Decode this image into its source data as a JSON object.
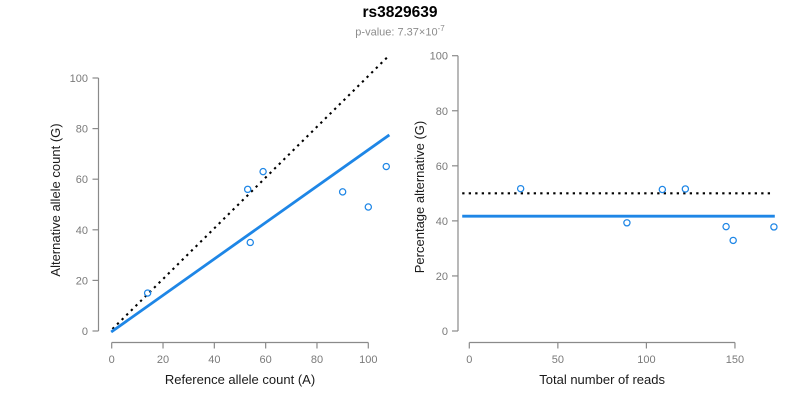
{
  "header": {
    "title": "rs3829639",
    "pvalue_label": "p-value: 7.37×10",
    "pvalue_exponent": "-7"
  },
  "colors": {
    "accent_blue": "#1E86E6",
    "identity_black": "#000000",
    "axis_gray": "#8a8a8a",
    "tick_text_gray": "#7a7a7a",
    "axis_title_color": "#1a1a1a",
    "subtitle_gray": "#8c8c8c"
  },
  "chart_data": [
    {
      "type": "scatter",
      "panel": "left",
      "xlabel": "Reference allele count (A)",
      "ylabel": "Alternative allele count (G)",
      "xticks": [
        0,
        20,
        40,
        60,
        80,
        100
      ],
      "yticks": [
        0,
        20,
        40,
        60,
        80,
        100
      ],
      "xlim": [
        -4,
        112
      ],
      "ylim": [
        -5,
        113
      ],
      "grid": false,
      "points": [
        [
          14,
          15
        ],
        [
          53,
          56
        ],
        [
          59,
          63
        ],
        [
          54,
          35
        ],
        [
          90,
          55
        ],
        [
          100,
          49
        ],
        [
          107,
          65
        ]
      ],
      "lines": [
        {
          "name": "identity-line",
          "style": "dotted",
          "color_key": "identity_black",
          "equation": "y = x",
          "x1": 0.3,
          "y1": 0.8,
          "x2": 107.9,
          "y2": 108.7
        },
        {
          "name": "fit-line",
          "style": "solid",
          "color_key": "accent_blue",
          "equation": "y = 0.72x",
          "x1": -0.2,
          "y1": -0.4,
          "x2": 108.2,
          "y2": 77.5
        }
      ]
    },
    {
      "type": "scatter",
      "panel": "right",
      "xlabel": "Total number of reads",
      "ylabel": "Percentage alternative (G)",
      "xticks": [
        0,
        50,
        100,
        150
      ],
      "yticks": [
        0,
        20,
        40,
        60,
        80,
        100
      ],
      "xlim": [
        -7,
        179
      ],
      "ylim": [
        -5,
        113
      ],
      "grid": false,
      "points": [
        [
          29,
          51.7
        ],
        [
          89,
          39.3
        ],
        [
          109,
          51.4
        ],
        [
          122,
          51.6
        ],
        [
          145,
          37.9
        ],
        [
          149,
          32.9
        ],
        [
          172,
          37.8
        ]
      ],
      "lines": [
        {
          "name": "expected-50pct-line",
          "style": "dotted",
          "color_key": "identity_black",
          "equation": "y = 50",
          "x1": -4,
          "y1": 50,
          "x2": 169.8,
          "y2": 50
        },
        {
          "name": "observed-ratio-line",
          "style": "solid",
          "color_key": "accent_blue",
          "equation": "y = 41.7",
          "x1": -4,
          "y1": 41.7,
          "x2": 172.5,
          "y2": 41.7
        }
      ]
    }
  ]
}
